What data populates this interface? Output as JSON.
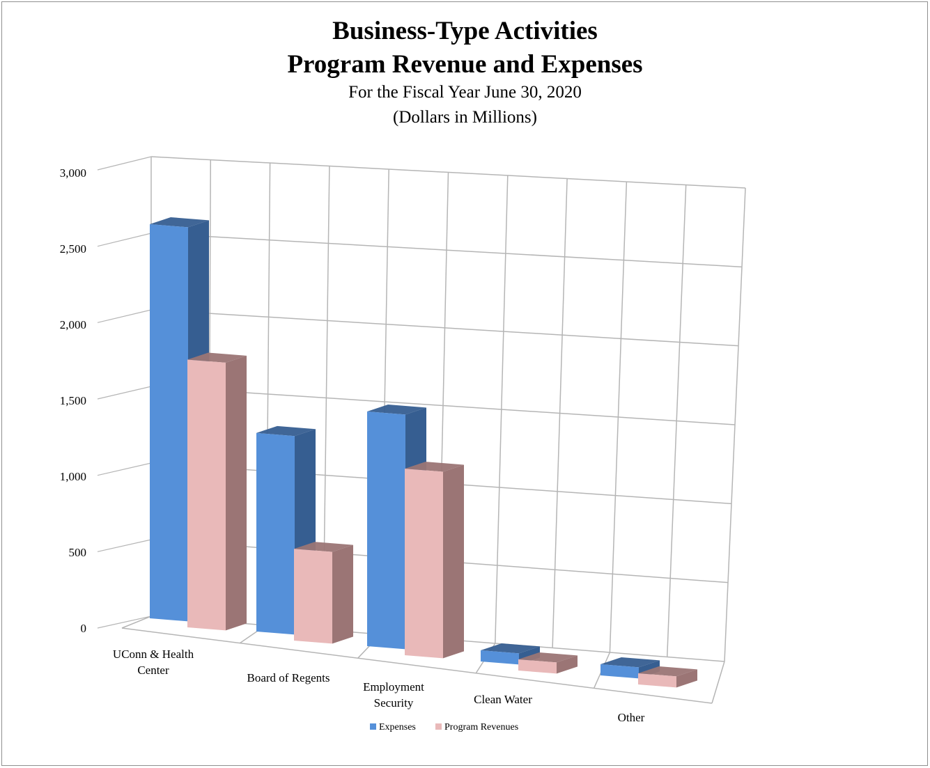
{
  "chart_data": {
    "type": "bar",
    "title": "Business-Type Activities",
    "title_line2": "Program Revenue and Expenses",
    "subtitle": "For the Fiscal Year June 30, 2020",
    "subtitle_line2": "(Dollars in Millions)",
    "categories": [
      [
        "UConn & Health",
        "Center"
      ],
      [
        "Board of Regents"
      ],
      [
        "Employment",
        "Security"
      ],
      [
        "Clean Water"
      ],
      [
        "Other"
      ]
    ],
    "series": [
      {
        "name": "Expenses",
        "values": [
          2620,
          1320,
          1560,
          60,
          60
        ],
        "color": "#5590d9",
        "side_color": "#365e91"
      },
      {
        "name": "Program Revenues",
        "values": [
          1780,
          610,
          1240,
          60,
          60
        ],
        "color": "#e9b9b9",
        "side_color": "#9b7575"
      }
    ],
    "ylim": [
      0,
      3000
    ],
    "yticks": [
      "0",
      "500",
      "1,000",
      "1,500",
      "2,000",
      "2,500",
      "3,000"
    ],
    "grid": true,
    "legend": "bottom-center"
  }
}
